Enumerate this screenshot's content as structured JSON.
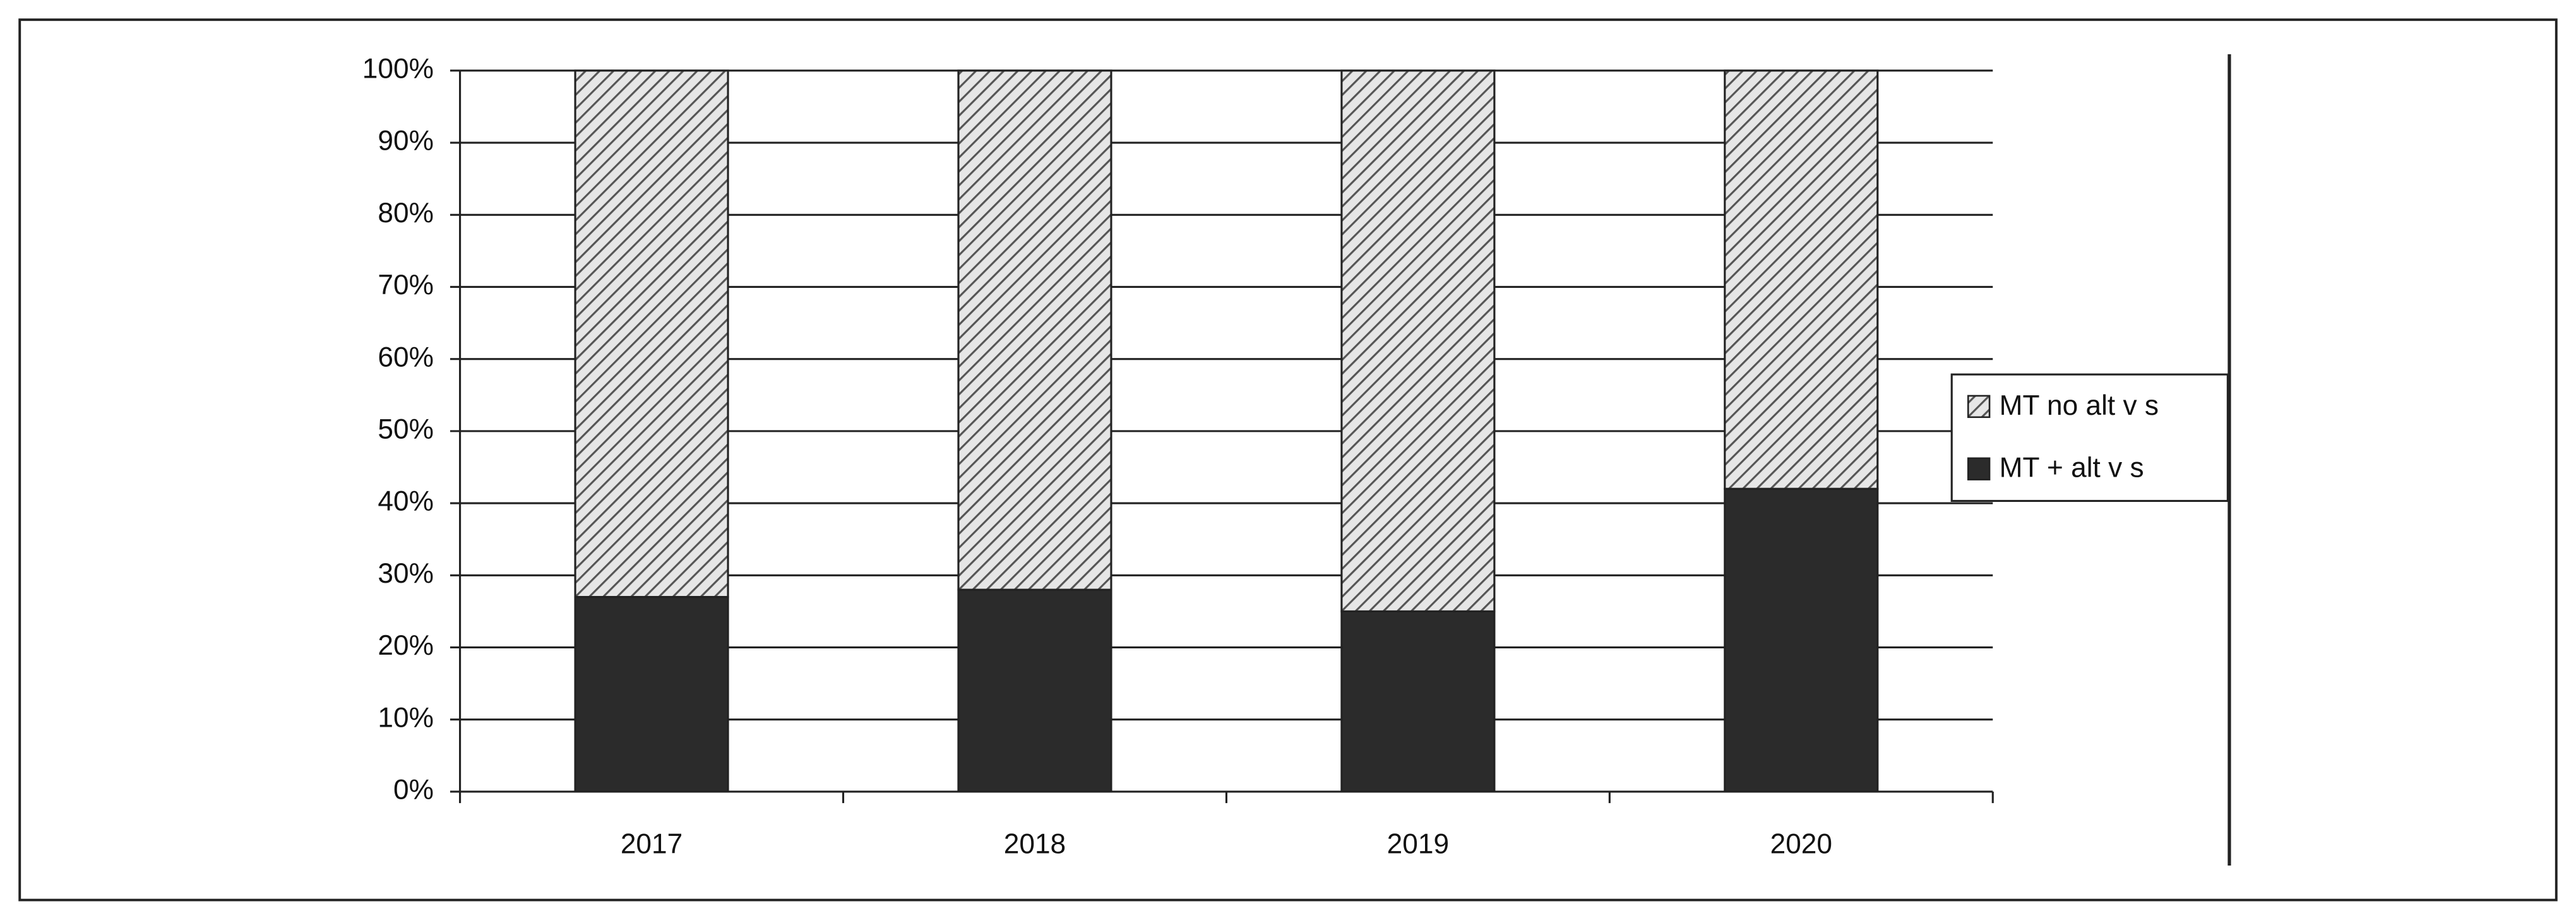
{
  "chart_data": {
    "type": "stacked-bar",
    "categories": [
      "2017",
      "2018",
      "2019",
      "2020"
    ],
    "series": [
      {
        "name": "MT + alt v s",
        "color": "#2b2b2b",
        "values": [
          27,
          28,
          25,
          42
        ]
      },
      {
        "name": "MT no alt v s",
        "color": "#555555",
        "pattern": "diagonal-hatch",
        "values": [
          73,
          72,
          75,
          58
        ]
      }
    ],
    "ylim": [
      0,
      100
    ],
    "yticks": [
      {
        "value": 0,
        "label": "0%"
      },
      {
        "value": 10,
        "label": "10%"
      },
      {
        "value": 20,
        "label": "20%"
      },
      {
        "value": 30,
        "label": "30%"
      },
      {
        "value": 40,
        "label": "40%"
      },
      {
        "value": 50,
        "label": "50%"
      },
      {
        "value": 60,
        "label": "60%"
      },
      {
        "value": 70,
        "label": "70%"
      },
      {
        "value": 80,
        "label": "80%"
      },
      {
        "value": 90,
        "label": "90%"
      },
      {
        "value": 100,
        "label": "100%"
      }
    ],
    "grid": true,
    "legend": "right"
  }
}
